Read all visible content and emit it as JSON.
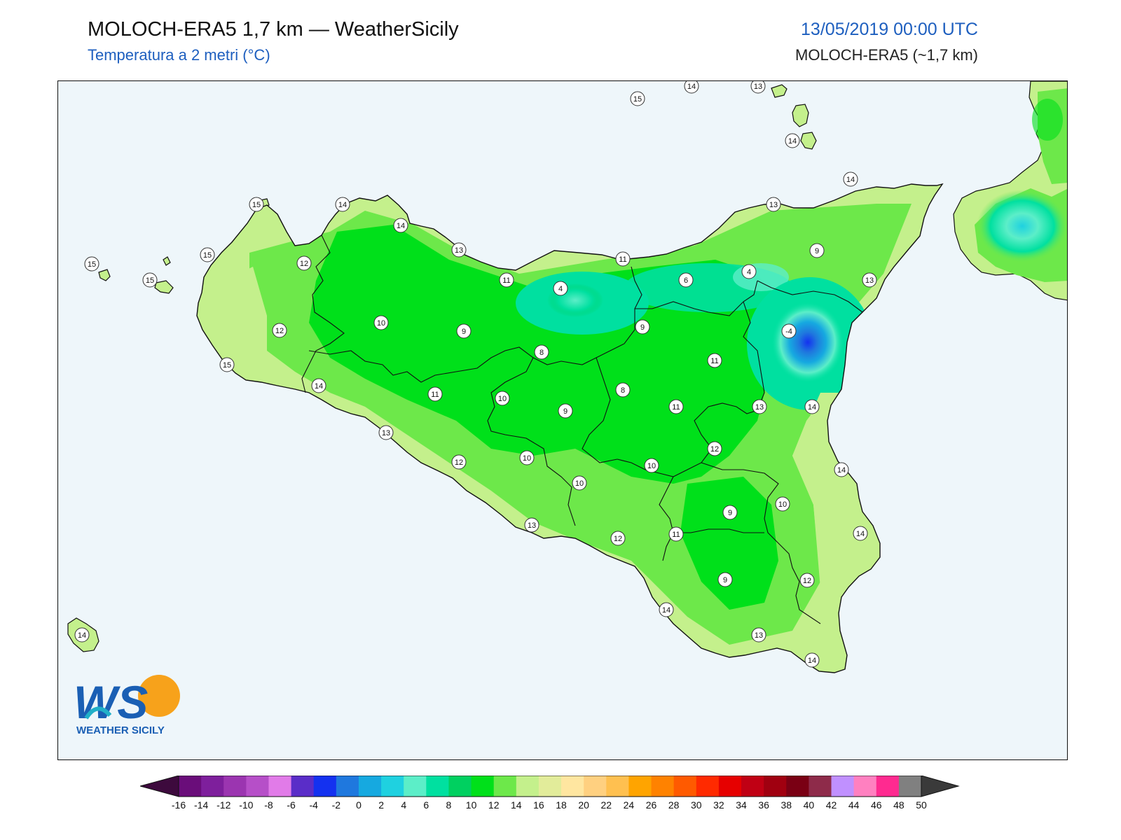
{
  "header": {
    "title": "MOLOCH-ERA5 1,7 km — WeatherSicily",
    "subtitle": "Temperatura a 2 metri (°C)",
    "valid_time": "13/05/2019 00:00 UTC",
    "model": "MOLOCH-ERA5 (~1,7 km)"
  },
  "logo": {
    "letters": "WS",
    "text": "WEATHER SICILY"
  },
  "colors": {
    "sea": "#eef6fa",
    "coast": "#111111",
    "title_blue": "#1e5fbf"
  },
  "colorbar": {
    "ticks": [
      "-16",
      "-14",
      "-12",
      "-10",
      "-8",
      "-6",
      "-4",
      "-2",
      "0",
      "2",
      "4",
      "6",
      "8",
      "10",
      "12",
      "14",
      "16",
      "18",
      "20",
      "22",
      "24",
      "26",
      "28",
      "30",
      "32",
      "34",
      "36",
      "38",
      "40",
      "42",
      "44",
      "46",
      "48",
      "50"
    ],
    "colors": [
      "#3d0a3d",
      "#6a0d7a",
      "#7e1f9c",
      "#9b35b0",
      "#b64fc8",
      "#e17be8",
      "#5a2dc8",
      "#1431f0",
      "#1f78de",
      "#16a9e0",
      "#1fd1e0",
      "#5ceec8",
      "#00e0a0",
      "#00d060",
      "#00e01a",
      "#6de84a",
      "#c4f08c",
      "#e2ec9a",
      "#ffe6a0",
      "#ffd080",
      "#ffc050",
      "#ffa400",
      "#ff8200",
      "#ff5a00",
      "#ff2a00",
      "#e60000",
      "#c00014",
      "#a00010",
      "#7a0014",
      "#8e2b4a",
      "#c090ff",
      "#ff80c0",
      "#ff2a90",
      "#808080",
      "#3a3a3a"
    ]
  },
  "stations": [
    {
      "v": "15"
    },
    {
      "v": "14"
    },
    {
      "v": "13"
    },
    {
      "v": "14"
    },
    {
      "v": "15"
    },
    {
      "v": "14"
    },
    {
      "v": "15"
    },
    {
      "v": "14"
    },
    {
      "v": "13"
    },
    {
      "v": "14"
    },
    {
      "v": "15"
    },
    {
      "v": "12"
    },
    {
      "v": "15"
    },
    {
      "v": "13"
    },
    {
      "v": "11"
    },
    {
      "v": "11"
    },
    {
      "v": "4"
    },
    {
      "v": "6"
    },
    {
      "v": "4"
    },
    {
      "v": "9"
    },
    {
      "v": "13"
    },
    {
      "v": "-4"
    },
    {
      "v": "10"
    },
    {
      "v": "12"
    },
    {
      "v": "9"
    },
    {
      "v": "9"
    },
    {
      "v": "8"
    },
    {
      "v": "15"
    },
    {
      "v": "14"
    },
    {
      "v": "11"
    },
    {
      "v": "11"
    },
    {
      "v": "10"
    },
    {
      "v": "8"
    },
    {
      "v": "9"
    },
    {
      "v": "11"
    },
    {
      "v": "13"
    },
    {
      "v": "14"
    },
    {
      "v": "13"
    },
    {
      "v": "12"
    },
    {
      "v": "10"
    },
    {
      "v": "12"
    },
    {
      "v": "10"
    },
    {
      "v": "10"
    },
    {
      "v": "14"
    },
    {
      "v": "13"
    },
    {
      "v": "10"
    },
    {
      "v": "9"
    },
    {
      "v": "12"
    },
    {
      "v": "11"
    },
    {
      "v": "14"
    },
    {
      "v": "9"
    },
    {
      "v": "12"
    },
    {
      "v": "14"
    },
    {
      "v": "13"
    },
    {
      "v": "14"
    },
    {
      "v": "14"
    }
  ]
}
